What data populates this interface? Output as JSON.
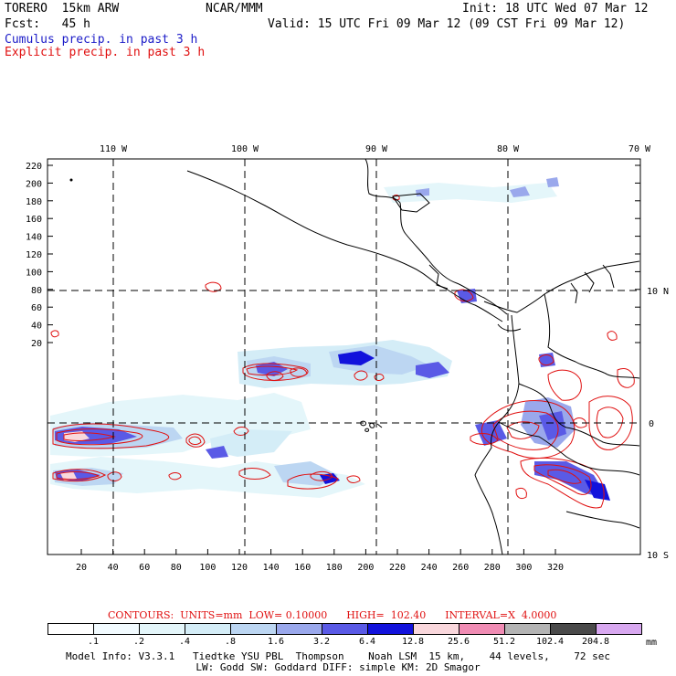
{
  "header": {
    "model": "TORERO  15km ARW",
    "org": "NCAR/MMM",
    "init": "Init: 18 UTC Wed 07 Mar 12",
    "fcst": "Fcst:   45 h",
    "valid": "Valid: 15 UTC Fri 09 Mar 12 (09 CST Fri 09 Mar 12)",
    "legend_cumulus": "Cumulus precip. in past 3 h",
    "legend_explicit": "Explicit precip. in past 3 h"
  },
  "colors": {
    "cumulus": "#1c1cc8",
    "explicit": "#e01010",
    "land_outline": "#000000"
  },
  "map": {
    "lon_labels": [
      "110 W",
      "100 W",
      "90 W",
      "80 W",
      "70 W"
    ],
    "lat_labels": [
      "10 N",
      "0",
      "10 S"
    ],
    "y_ticks": [
      "220",
      "200",
      "180",
      "160",
      "140",
      "120",
      "100",
      "80",
      "60",
      "40",
      "20"
    ],
    "x_ticks": [
      "20",
      "40",
      "60",
      "80",
      "100",
      "120",
      "140",
      "160",
      "180",
      "200",
      "220",
      "240",
      "260",
      "280",
      "300",
      "320"
    ]
  },
  "contours": {
    "text": "CONTOURS:  UNITS=mm  LOW= 0.10000      HIGH=  102.40      INTERVAL=X  4.0000"
  },
  "colorbar": {
    "unit": "mm",
    "labels": [
      ".1",
      ".2",
      ".4",
      ".8",
      "1.6",
      "3.2",
      "6.4",
      "12.8",
      "25.6",
      "51.2",
      "102.4",
      "204.8"
    ],
    "colors": [
      "#ffffff",
      "#f2fbff",
      "#e4f6fa",
      "#d4edf7",
      "#bcd6f2",
      "#9aa8ec",
      "#5a5ae6",
      "#1212dc",
      "#f9d7dc",
      "#f08cb4",
      "#b4b4b4",
      "#4a4a4a",
      "#d8a8f0"
    ]
  },
  "footer": {
    "line1": "Model Info: V3.3.1   Tiedtke YSU PBL  Thompson    Noah LSM  15 km,    44 levels,    72 sec",
    "line2": "LW: Godd SW: Goddard DIFF: simple KM: 2D Smagor"
  }
}
